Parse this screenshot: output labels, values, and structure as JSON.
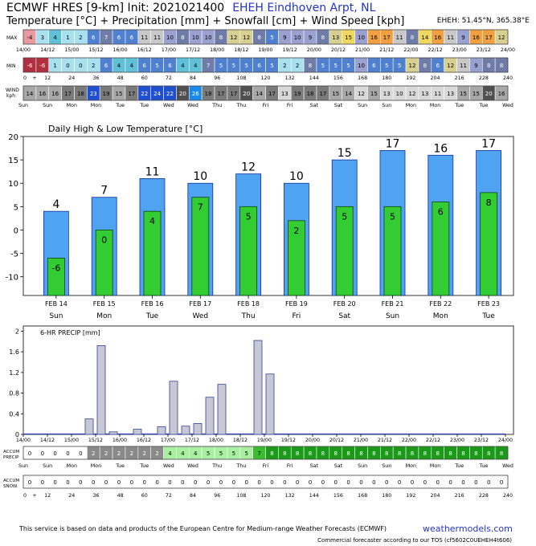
{
  "header": {
    "model": "ECMWF HRES [9-km] Init: 2021021400",
    "station": "EHEH Eindhoven Arpt,  NL",
    "subtitle": "Temperature [°C] + Precipitation [mm] + Snowfall [cm] + Wind Speed [kph]",
    "coords": "EHEH: 51.45°N, 365.38°E"
  },
  "strips": {
    "max_label": "MAX",
    "min_label": "MIN",
    "wind_label": "WIND",
    "wind_unit": "kph",
    "accum_precip_label": [
      "ACCUM",
      "PRECIP"
    ],
    "accum_snow_label": [
      "ACCUM",
      "SNOW"
    ],
    "max_values": [
      "-4",
      "3",
      "4",
      "1",
      "2",
      "6",
      "7",
      "6",
      "6",
      "11",
      "11",
      "10",
      "8",
      "10",
      "10",
      "8",
      "12",
      "12",
      "8",
      "5",
      "9",
      "10",
      "9",
      "8",
      "13",
      "15",
      "10",
      "16",
      "17",
      "11",
      "8",
      "14",
      "16",
      "11",
      "9",
      "16",
      "17",
      "12"
    ],
    "min_values": [
      "-6",
      "-6",
      "1",
      "0",
      "0",
      "2",
      "6",
      "4",
      "4",
      "6",
      "5",
      "6",
      "4",
      "4",
      "7",
      "5",
      "5",
      "5",
      "6",
      "5",
      "2",
      "2",
      "8",
      "5",
      "5",
      "5",
      "10",
      "6",
      "5",
      "5",
      "12",
      "8",
      "6",
      "12",
      "11",
      "9",
      "8",
      "8"
    ],
    "wind_values": [
      "14",
      "16",
      "16",
      "17",
      "18",
      "23",
      "19",
      "15",
      "17",
      "22",
      "24",
      "22",
      "20",
      "26",
      "18",
      "17",
      "17",
      "20",
      "14",
      "17",
      "13",
      "19",
      "18",
      "17",
      "15",
      "14",
      "12",
      "15",
      "13",
      "10",
      "12",
      "13",
      "11",
      "13",
      "15",
      "15",
      "20",
      "16"
    ],
    "accum_precip_values": [
      "0",
      "0",
      "0",
      "0",
      "0",
      "2",
      "2",
      "2",
      "2",
      "2",
      "2",
      "4",
      "4",
      "4",
      "5",
      "5",
      "5",
      "5",
      "7",
      "8",
      "8",
      "8",
      "8",
      "8",
      "8",
      "8",
      "8",
      "8",
      "8",
      "8",
      "8",
      "8",
      "8",
      "8",
      "8",
      "8",
      "8",
      "8"
    ],
    "accum_snow_values": [
      "0",
      "0",
      "0",
      "0",
      "0",
      "0",
      "0",
      "0",
      "0",
      "0",
      "0",
      "0",
      "0",
      "0",
      "0",
      "0",
      "0",
      "0",
      "0",
      "0",
      "0",
      "0",
      "0",
      "0",
      "0",
      "0",
      "0",
      "0",
      "0",
      "0",
      "0",
      "0",
      "0",
      "0",
      "0",
      "0",
      "0",
      "0"
    ],
    "date_ticks": [
      "14/00",
      "14/12",
      "15/00",
      "15/12",
      "16/00",
      "16/12",
      "17/00",
      "17/12",
      "18/00",
      "18/12",
      "19/00",
      "19/12",
      "20/00",
      "20/12",
      "21/00",
      "21/12",
      "22/00",
      "22/12",
      "23/00",
      "23/12",
      "24/00"
    ],
    "hour_ticks": [
      "0",
      "+",
      "12",
      "24",
      "36",
      "48",
      "60",
      "72",
      "84",
      "96",
      "108",
      "120",
      "132",
      "144",
      "156",
      "168",
      "180",
      "192",
      "204",
      "216",
      "228",
      "240"
    ],
    "weekday_ticks": [
      "Sun",
      "Sun",
      "Mon",
      "Mon",
      "Tue",
      "Tue",
      "Wed",
      "Wed",
      "Thu",
      "Thu",
      "Fri",
      "Fri",
      "Sat",
      "Sat",
      "Sun",
      "Sun",
      "Mon",
      "Mon",
      "Tue",
      "Tue",
      "Wed"
    ],
    "colors": {
      "cold_dark": "#b03040",
      "cold_light": "#e89aa0",
      "cool": "#a8e0f0",
      "teal": "#5fc0d8",
      "blue": "#5080d0",
      "slate": "#707ca8",
      "lilac": "#9aa0d0",
      "grey": "#c8c8c8",
      "olive": "#d8d090",
      "yellow": "#f0d860",
      "orange": "#f0a040",
      "wind_blue": "#2050d0",
      "wind_bright": "#1a8ae8",
      "green_light": "#a8f0a0",
      "green": "#3cbc30",
      "green_dark": "#1a9a18"
    }
  },
  "chart_data": [
    {
      "type": "bar",
      "title": "Daily High & Low Temperature [°C]",
      "categories": [
        "FEB 14",
        "FEB 15",
        "FEB 16",
        "FEB 17",
        "FEB 18",
        "FEB 19",
        "FEB 20",
        "FEB 21",
        "FEB 22",
        "FEB 23"
      ],
      "weekdays": [
        "Sun",
        "Mon",
        "Tue",
        "Wed",
        "Thu",
        "Fri",
        "Sat",
        "Sun",
        "Mon",
        "Tue"
      ],
      "series": [
        {
          "values": [
            4,
            7,
            11,
            10,
            12,
            10,
            15,
            17,
            16,
            17
          ],
          "color": "#4fa3f0"
        },
        {
          "values": [
            -6,
            0,
            4,
            7,
            5,
            2,
            5,
            5,
            6,
            8
          ],
          "color": "#33cc33"
        }
      ],
      "ylim": [
        -14,
        20
      ],
      "yticks": [
        -10,
        -5,
        0,
        5,
        10,
        15,
        20
      ],
      "grid": false
    },
    {
      "type": "bar",
      "title": "6-HR PRECIP [mm]",
      "x_ticks": [
        "14/00",
        "14/12",
        "15/00",
        "15/12",
        "16/00",
        "16/12",
        "17/00",
        "17/12",
        "18/00",
        "18/12",
        "19/00",
        "19/12",
        "20/00",
        "20/12",
        "21/00",
        "21/12",
        "22/00",
        "22/12",
        "23/00",
        "23/12",
        "24/00"
      ],
      "values": [
        0,
        0,
        0,
        0,
        0,
        0.3,
        1.72,
        0.05,
        0,
        0.1,
        0,
        0.15,
        1.03,
        0.16,
        0.21,
        0.72,
        0.97,
        0,
        0,
        1.82,
        1.17,
        0,
        0,
        0,
        0,
        0,
        0,
        0,
        0,
        0,
        0,
        0,
        0,
        0,
        0,
        0,
        0,
        0,
        0,
        0
      ],
      "ylim": [
        0,
        2.1
      ],
      "yticks": [
        0,
        0.4,
        0.8,
        1.2,
        1.6,
        2
      ],
      "bar_color": "#c8c8d4",
      "grid": false
    }
  ],
  "footer": {
    "credit": "This service is based on data and products of the European Centre for Medium-range Weather Forecasts (ECMWF)",
    "brand": "weathermodels.com",
    "tos": "Commercial forecaster according to our TOS (cf5602C0UEHEH4t606)"
  }
}
